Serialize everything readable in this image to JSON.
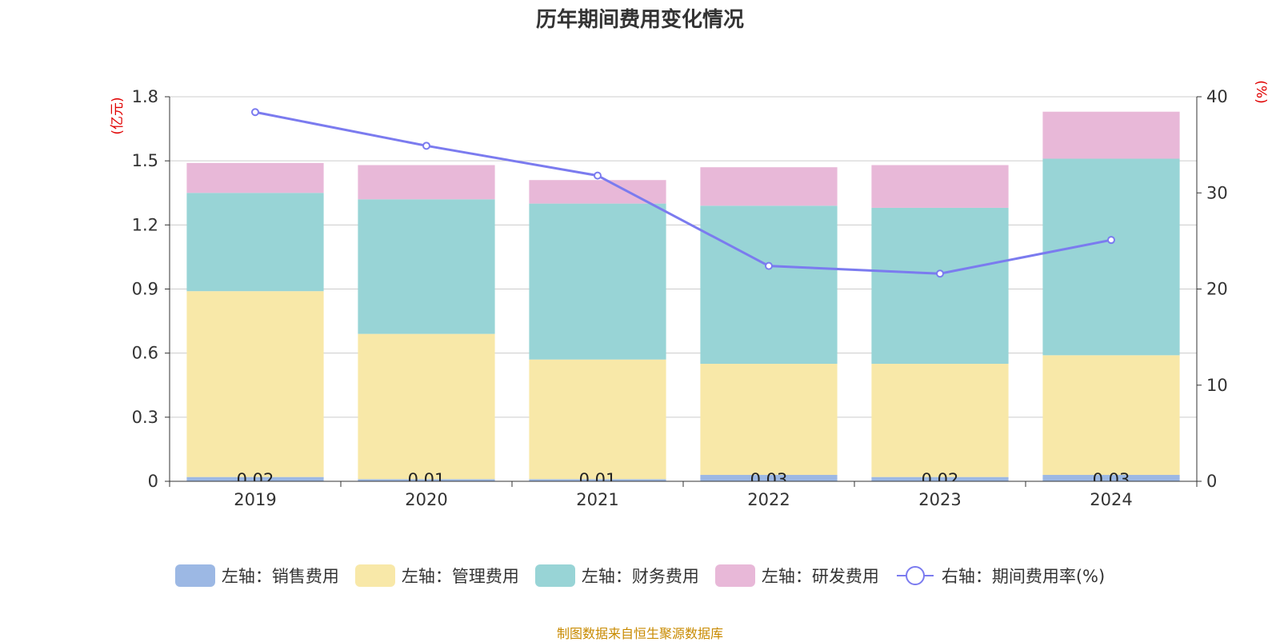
{
  "chart_data": {
    "type": "bar",
    "title": "历年期间费用变化情况",
    "categories": [
      "2019",
      "2020",
      "2021",
      "2022",
      "2023",
      "2024"
    ],
    "y_left_unit": "(亿元)",
    "y_right_unit": "(%)",
    "y_left_ticks": [
      "0",
      "0.3",
      "0.6",
      "0.9",
      "1.2",
      "1.5",
      "1.8"
    ],
    "y_right_ticks": [
      "0",
      "10",
      "20",
      "30",
      "40"
    ],
    "ylim_left": [
      0,
      1.8
    ],
    "ylim_right": [
      0,
      40
    ],
    "grid": true,
    "legend_position": "bottom",
    "series": [
      {
        "name": "左轴：销售费用",
        "type": "bar",
        "axis": "left",
        "color": "#9cb8e4",
        "values": [
          0.02,
          0.01,
          0.01,
          0.03,
          0.02,
          0.03
        ],
        "labels": [
          "0.02",
          "0.01",
          "0.01",
          "0.03",
          "0.02",
          "0.03"
        ]
      },
      {
        "name": "左轴：管理费用",
        "type": "bar",
        "axis": "left",
        "color": "#f8e8a8",
        "values": [
          0.87,
          0.68,
          0.56,
          0.52,
          0.53,
          0.56
        ]
      },
      {
        "name": "左轴：财务费用",
        "type": "bar",
        "axis": "left",
        "color": "#98d4d6",
        "values": [
          0.46,
          0.63,
          0.73,
          0.74,
          0.73,
          0.92
        ]
      },
      {
        "name": "左轴：研发费用",
        "type": "bar",
        "axis": "left",
        "color": "#e8b8d8",
        "values": [
          0.14,
          0.16,
          0.11,
          0.18,
          0.2,
          0.22
        ]
      },
      {
        "name": "右轴：期间费用率(%)",
        "type": "line",
        "axis": "right",
        "color": "#7b7bef",
        "values": [
          38.4,
          34.9,
          31.8,
          22.4,
          21.6,
          25.1
        ]
      }
    ],
    "source": "制图数据来自恒生聚源数据库"
  }
}
